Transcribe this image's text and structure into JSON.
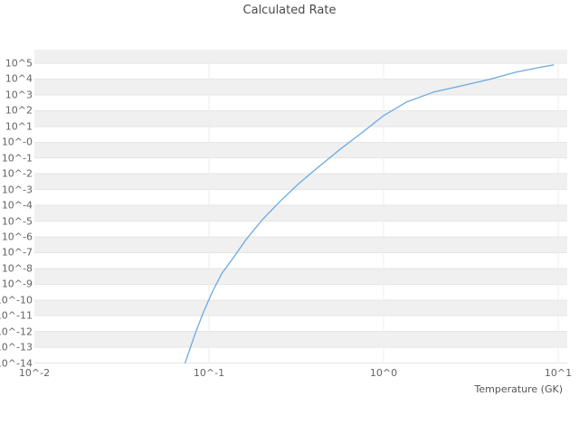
{
  "title": "Calculated Rate",
  "colors": {
    "line": "#6aaae4",
    "band_gray": "#f0f0f0",
    "band_white": "#ffffff",
    "gridline": "#e5e5e5",
    "vgridline": "#eeeeee",
    "tick_text": "#646464",
    "title_text": "#4a4a4a"
  },
  "chart_data": {
    "type": "line",
    "title": "Calculated Rate",
    "xlabel": "Temperature (GK)",
    "ylabel": "",
    "x_scale": "log",
    "y_scale": "log",
    "xlim": [
      0.01,
      10
    ],
    "ylim": [
      1e-14,
      100000.0
    ],
    "grid": "horizontal-bands",
    "legend": "none",
    "x_ticks": [
      "10^-2",
      "10^-1",
      "10^0",
      "10^1"
    ],
    "x_tick_decades": [
      -2,
      -1,
      0,
      1
    ],
    "y_ticks": [
      "10^5",
      "10^4",
      "10^3",
      "10^2",
      "10^1",
      "10^-0",
      "10^-1",
      "10^-2",
      "10^-3",
      "10^-4",
      "10^-5",
      "10^-6",
      "10^-7",
      "10^-8",
      "10^-9",
      "10^-10",
      "10^-11",
      "10^-12",
      "10^-13",
      "10^-14"
    ],
    "y_tick_decades": [
      5,
      4,
      3,
      2,
      1,
      0,
      -1,
      -2,
      -3,
      -4,
      -5,
      -6,
      -7,
      -8,
      -9,
      -10,
      -11,
      -12,
      -13,
      -14
    ],
    "series": [
      {
        "name": "calculated-rate",
        "x": [
          0.073,
          0.083,
          0.093,
          0.105,
          0.118,
          0.138,
          0.163,
          0.202,
          0.257,
          0.327,
          0.414,
          0.557,
          0.75,
          1.0,
          1.35,
          1.94,
          2.78,
          4.0,
          5.7,
          8.1,
          9.4
        ],
        "y": [
          1e-14,
          6.5e-13,
          1.7e-11,
          3.6e-10,
          4.5e-09,
          4.8e-08,
          6.8e-07,
          1.2e-05,
          0.00019,
          0.0024,
          0.022,
          0.32,
          3.9,
          48,
          350,
          1500,
          3700,
          9300,
          27000,
          59000,
          78000
        ]
      }
    ]
  }
}
